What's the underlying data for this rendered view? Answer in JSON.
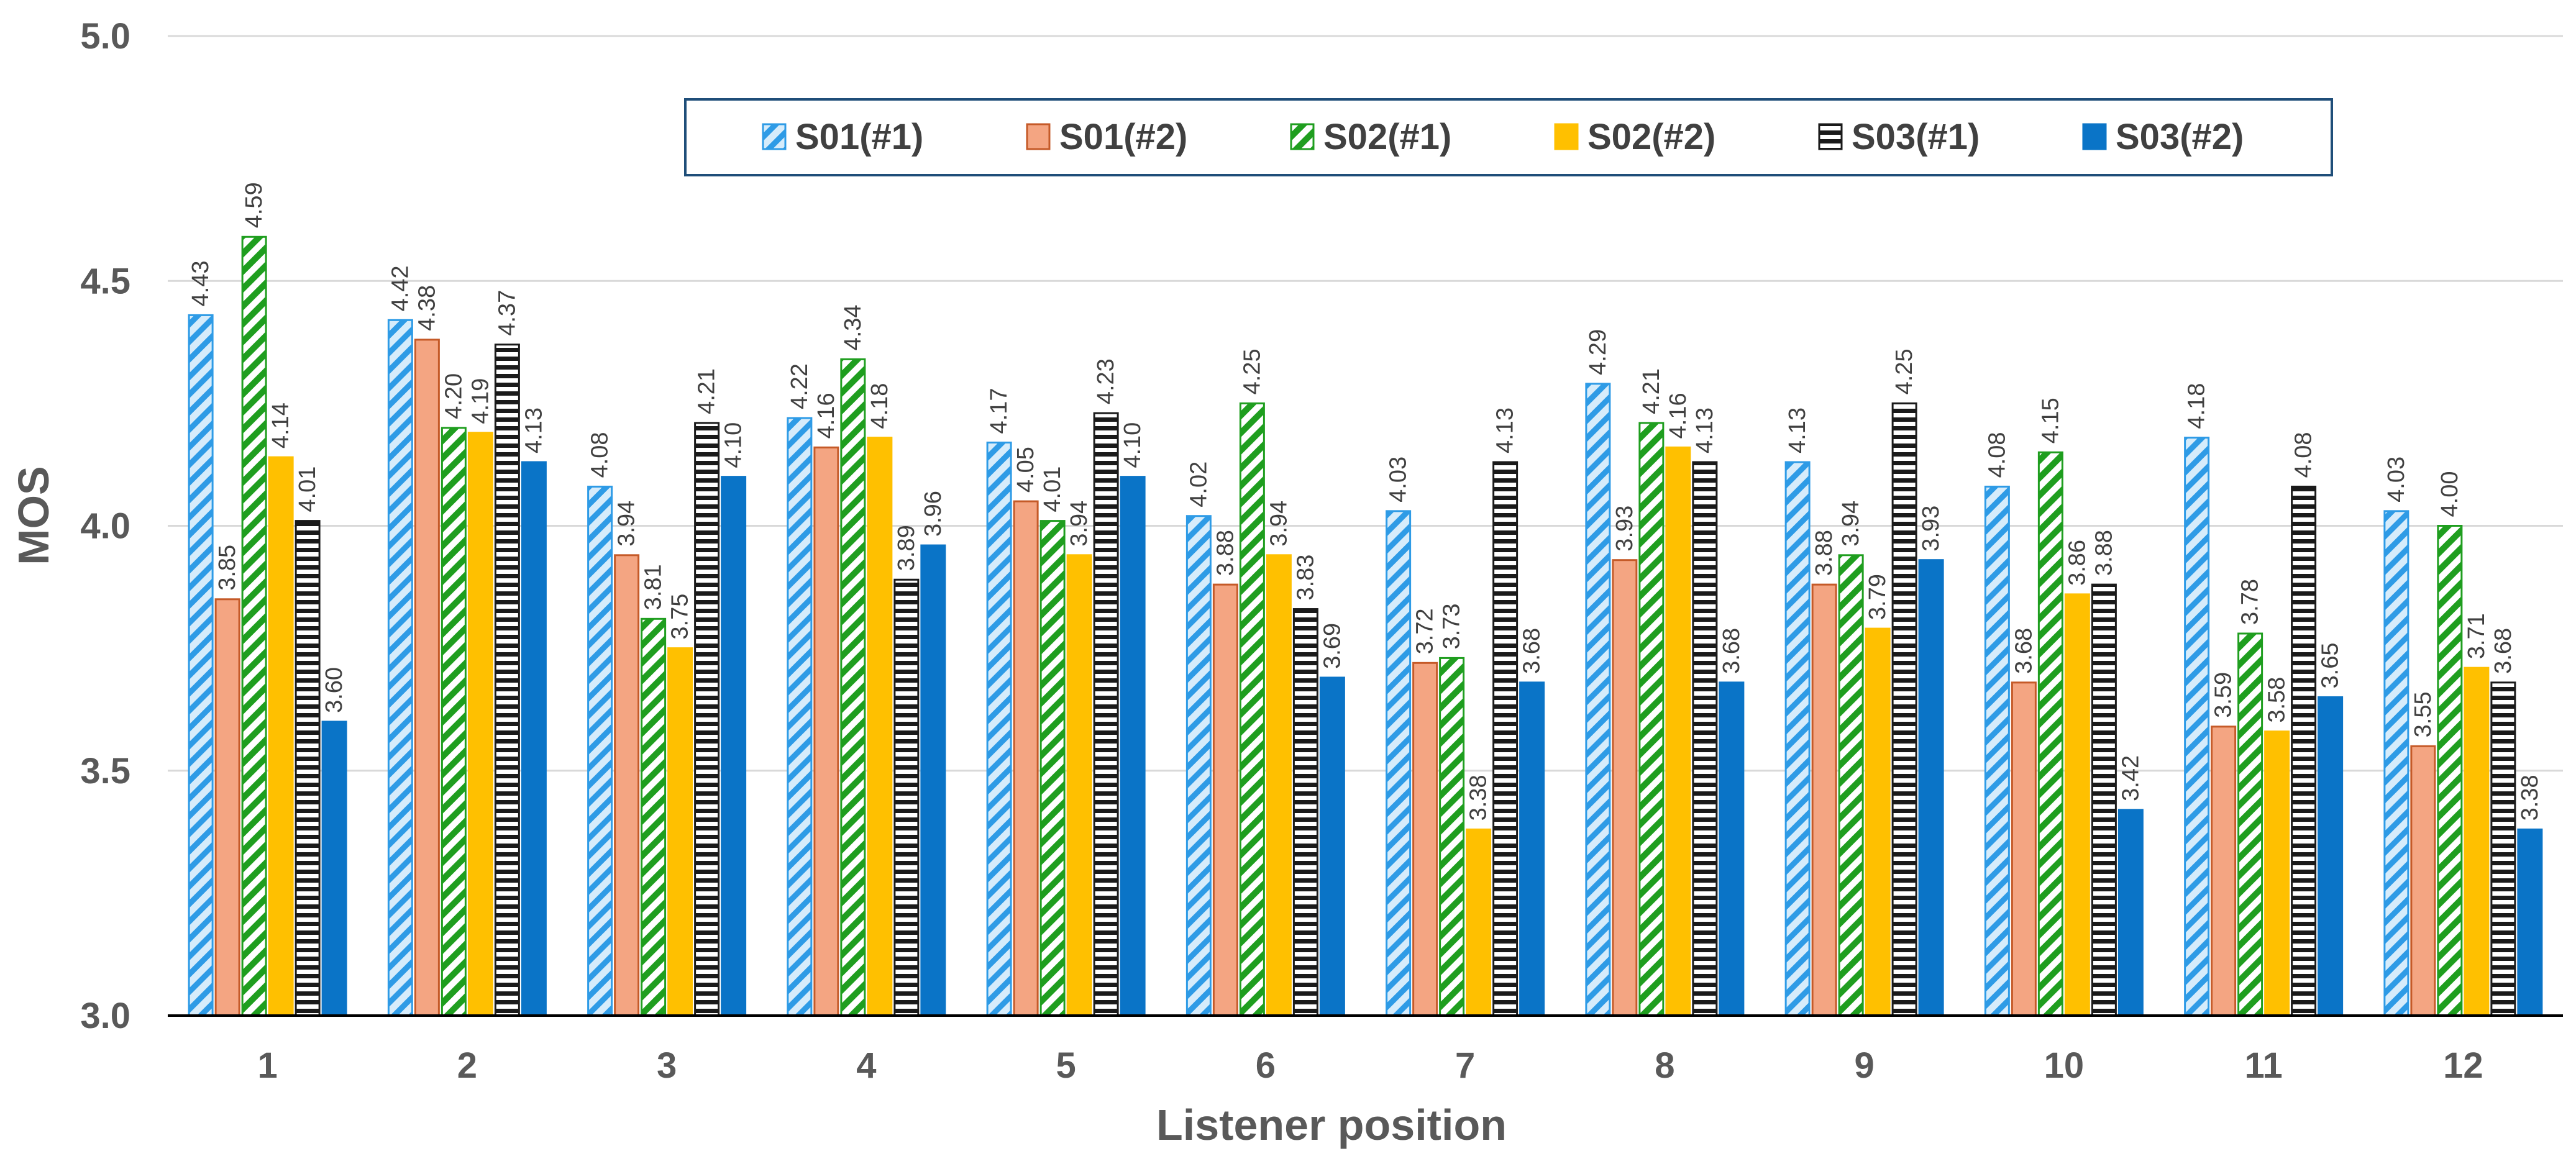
{
  "chart_data": {
    "type": "bar",
    "title": "",
    "xlabel": "Listener position",
    "ylabel": "MOS",
    "ylim": [
      3.0,
      5.0
    ],
    "yticks": [
      "3.0",
      "3.5",
      "4.0",
      "4.5",
      "5.0"
    ],
    "grid": true,
    "legend_position": "top",
    "categories": [
      "1",
      "2",
      "3",
      "4",
      "5",
      "6",
      "7",
      "8",
      "9",
      "10",
      "11",
      "12"
    ],
    "series": [
      {
        "name": "S01(#1)",
        "color": "#2e9be6",
        "pattern": "diagonal-stripes-light",
        "values": [
          4.43,
          4.42,
          4.08,
          4.22,
          4.17,
          4.02,
          4.03,
          4.29,
          4.13,
          4.08,
          4.18,
          4.03
        ],
        "labels": [
          "4.43",
          "4.42",
          "4.08",
          "4.22",
          "4.17",
          "4.02",
          "4.03",
          "4.29",
          "4.13",
          "4.08",
          "4.18",
          "4.03"
        ]
      },
      {
        "name": "S01(#2)",
        "color": "#f4a582",
        "pattern": "solid-outlined",
        "values": [
          3.85,
          4.38,
          3.94,
          4.16,
          4.05,
          3.88,
          3.72,
          3.93,
          3.88,
          3.68,
          3.59,
          3.55
        ],
        "labels": [
          "3.85",
          "4.38",
          "3.94",
          "4.16",
          "4.05",
          "3.88",
          "3.72",
          "3.93",
          "3.88",
          "3.68",
          "3.59",
          "3.55"
        ]
      },
      {
        "name": "S02(#1)",
        "color": "#1f9e1f",
        "pattern": "diagonal-stripes-dark",
        "values": [
          4.59,
          4.2,
          3.81,
          4.34,
          4.01,
          4.25,
          3.73,
          4.21,
          3.94,
          4.15,
          3.78,
          4.0
        ],
        "labels": [
          "4.59",
          "4.20",
          "3.81",
          "4.34",
          "4.01",
          "4.25",
          "3.73",
          "4.21",
          "3.94",
          "4.15",
          "3.78",
          "4.00"
        ]
      },
      {
        "name": "S02(#2)",
        "color": "#ffc000",
        "pattern": "solid",
        "values": [
          4.14,
          4.19,
          3.75,
          4.18,
          3.94,
          3.94,
          3.38,
          4.16,
          3.79,
          3.86,
          3.58,
          3.71
        ],
        "labels": [
          "4.14",
          "4.19",
          "3.75",
          "4.18",
          "3.94",
          "3.94",
          "3.38",
          "4.16",
          "3.79",
          "3.86",
          "3.58",
          "3.71"
        ]
      },
      {
        "name": "S03(#1)",
        "color": "#1a1a1a",
        "pattern": "horizontal-stripes",
        "values": [
          4.01,
          4.37,
          4.21,
          3.89,
          4.23,
          3.83,
          4.13,
          4.13,
          4.25,
          3.88,
          4.08,
          3.68
        ],
        "labels": [
          "4.01",
          "4.37",
          "4.21",
          "3.89",
          "4.23",
          "3.83",
          "4.13",
          "4.13",
          "4.25",
          "3.88",
          "4.08",
          "3.68"
        ]
      },
      {
        "name": "S03(#2)",
        "color": "#0a74c7",
        "pattern": "solid",
        "values": [
          3.6,
          4.13,
          4.1,
          3.96,
          4.1,
          3.69,
          3.68,
          3.68,
          3.93,
          3.42,
          3.65,
          3.38
        ],
        "labels": [
          "3.60",
          "4.13",
          "4.10",
          "3.96",
          "4.10",
          "3.69",
          "3.68",
          "3.68",
          "3.93",
          "3.42",
          "3.65",
          "3.38"
        ]
      }
    ]
  }
}
